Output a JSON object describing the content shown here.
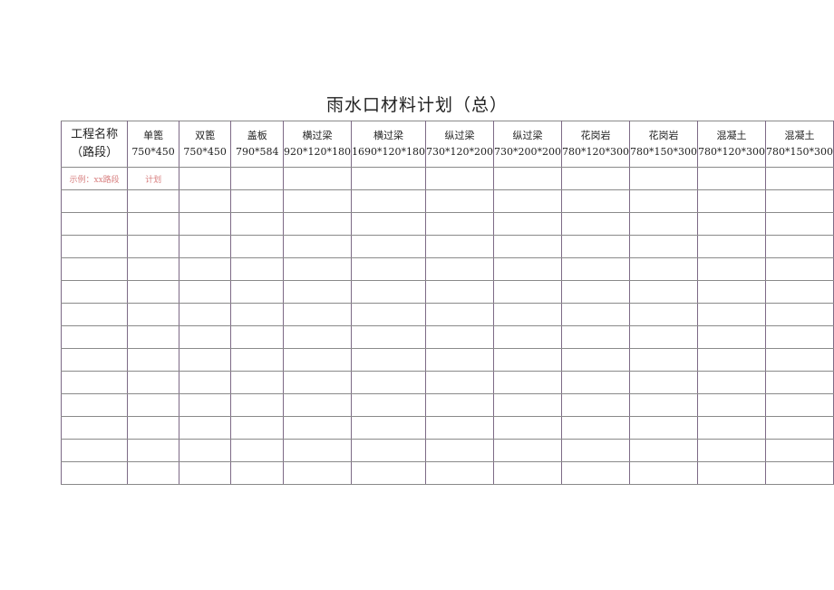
{
  "title": "雨水口材料计划（总）",
  "columns": [
    {
      "name": "工程名称（路段）",
      "size": ""
    },
    {
      "name": "单篦",
      "size": "750*450"
    },
    {
      "name": "双篦",
      "size": "750*450"
    },
    {
      "name": "盖板",
      "size": "790*584"
    },
    {
      "name": "横过梁",
      "size": "920*120*180"
    },
    {
      "name": "横过梁",
      "size": "1690*120*180"
    },
    {
      "name": "纵过梁",
      "size": "730*120*200"
    },
    {
      "name": "纵过梁",
      "size": "730*200*200"
    },
    {
      "name": "花岗岩",
      "size": "780*120*300"
    },
    {
      "name": "花岗岩",
      "size": "780*150*300"
    },
    {
      "name": "混凝土",
      "size": "780*120*300"
    },
    {
      "name": "混凝土",
      "size": "780*150*300"
    }
  ],
  "example_row": [
    "示例：xx路段",
    "计划"
  ],
  "empty_rows": 13,
  "colors": {
    "example_text": "#d88080",
    "grid": "#8a8a8a"
  }
}
